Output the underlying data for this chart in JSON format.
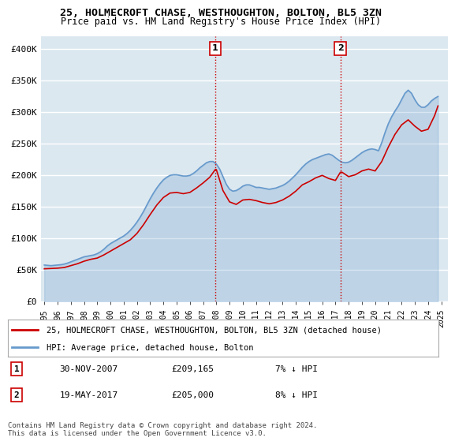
{
  "title": "25, HOLMECROFT CHASE, WESTHOUGHTON, BOLTON, BL5 3ZN",
  "subtitle": "Price paid vs. HM Land Registry's House Price Index (HPI)",
  "hpi_label": "HPI: Average price, detached house, Bolton",
  "property_label": "25, HOLMECROFT CHASE, WESTHOUGHTON, BOLTON, BL5 3ZN (detached house)",
  "hpi_color": "#6699cc",
  "property_color": "#cc0000",
  "marker_color": "#cc0000",
  "background_color": "#f0f4f8",
  "plot_bg_color": "#dce8f0",
  "grid_color": "#ffffff",
  "ylim": [
    0,
    420000
  ],
  "yticks": [
    0,
    50000,
    100000,
    150000,
    200000,
    250000,
    300000,
    350000,
    400000
  ],
  "ytick_labels": [
    "£0",
    "£50K",
    "£100K",
    "£150K",
    "£200K",
    "£250K",
    "£300K",
    "£350K",
    "£400K"
  ],
  "sale1_date": "30-NOV-2007",
  "sale1_price": 209165,
  "sale1_hpi_pct": "7% ↓ HPI",
  "sale1_label": "1",
  "sale1_year": 2007.917,
  "sale2_date": "19-MAY-2017",
  "sale2_price": 205000,
  "sale2_hpi_pct": "8% ↓ HPI",
  "sale2_label": "2",
  "sale2_year": 2017.375,
  "vline_color": "#cc0000",
  "vline_style": ":",
  "footer": "Contains HM Land Registry data © Crown copyright and database right 2024.\nThis data is licensed under the Open Government Licence v3.0.",
  "hpi_data": {
    "years": [
      1995.0,
      1995.25,
      1995.5,
      1995.75,
      1996.0,
      1996.25,
      1996.5,
      1996.75,
      1997.0,
      1997.25,
      1997.5,
      1997.75,
      1998.0,
      1998.25,
      1998.5,
      1998.75,
      1999.0,
      1999.25,
      1999.5,
      1999.75,
      2000.0,
      2000.25,
      2000.5,
      2000.75,
      2001.0,
      2001.25,
      2001.5,
      2001.75,
      2002.0,
      2002.25,
      2002.5,
      2002.75,
      2003.0,
      2003.25,
      2003.5,
      2003.75,
      2004.0,
      2004.25,
      2004.5,
      2004.75,
      2005.0,
      2005.25,
      2005.5,
      2005.75,
      2006.0,
      2006.25,
      2006.5,
      2006.75,
      2007.0,
      2007.25,
      2007.5,
      2007.75,
      2008.0,
      2008.25,
      2008.5,
      2008.75,
      2009.0,
      2009.25,
      2009.5,
      2009.75,
      2010.0,
      2010.25,
      2010.5,
      2010.75,
      2011.0,
      2011.25,
      2011.5,
      2011.75,
      2012.0,
      2012.25,
      2012.5,
      2012.75,
      2013.0,
      2013.25,
      2013.5,
      2013.75,
      2014.0,
      2014.25,
      2014.5,
      2014.75,
      2015.0,
      2015.25,
      2015.5,
      2015.75,
      2016.0,
      2016.25,
      2016.5,
      2016.75,
      2017.0,
      2017.25,
      2017.5,
      2017.75,
      2018.0,
      2018.25,
      2018.5,
      2018.75,
      2019.0,
      2019.25,
      2019.5,
      2019.75,
      2020.0,
      2020.25,
      2020.5,
      2020.75,
      2021.0,
      2021.25,
      2021.5,
      2021.75,
      2022.0,
      2022.25,
      2022.5,
      2022.75,
      2023.0,
      2023.25,
      2023.5,
      2023.75,
      2024.0,
      2024.25,
      2024.5,
      2024.75
    ],
    "values": [
      58000,
      57500,
      57000,
      57500,
      58000,
      58500,
      59500,
      61000,
      63000,
      65000,
      67000,
      69000,
      71000,
      72000,
      73000,
      74000,
      76000,
      79000,
      83000,
      88000,
      92000,
      95000,
      98000,
      101000,
      104000,
      108000,
      113000,
      119000,
      126000,
      134000,
      143000,
      153000,
      163000,
      172000,
      180000,
      187000,
      193000,
      197000,
      200000,
      201000,
      201000,
      200000,
      199000,
      199000,
      200000,
      203000,
      207000,
      212000,
      216000,
      220000,
      222000,
      222000,
      218000,
      210000,
      198000,
      186000,
      178000,
      175000,
      176000,
      179000,
      183000,
      185000,
      185000,
      183000,
      181000,
      181000,
      180000,
      179000,
      178000,
      179000,
      180000,
      182000,
      184000,
      187000,
      191000,
      196000,
      201000,
      207000,
      213000,
      218000,
      222000,
      225000,
      227000,
      229000,
      231000,
      233000,
      234000,
      232000,
      228000,
      224000,
      221000,
      220000,
      221000,
      224000,
      228000,
      232000,
      236000,
      239000,
      241000,
      242000,
      241000,
      239000,
      252000,
      268000,
      282000,
      293000,
      302000,
      310000,
      320000,
      330000,
      335000,
      330000,
      320000,
      312000,
      308000,
      308000,
      312000,
      318000,
      322000,
      325000
    ]
  },
  "property_data": {
    "years": [
      1995.0,
      1995.5,
      1996.0,
      1996.5,
      1997.0,
      1997.5,
      1998.0,
      1998.5,
      1999.0,
      1999.5,
      2000.0,
      2000.5,
      2001.0,
      2001.5,
      2002.0,
      2002.5,
      2003.0,
      2003.5,
      2004.0,
      2004.5,
      2005.0,
      2005.5,
      2006.0,
      2006.5,
      2007.0,
      2007.5,
      2007.917,
      2008.0,
      2008.5,
      2009.0,
      2009.5,
      2010.0,
      2010.5,
      2011.0,
      2011.5,
      2012.0,
      2012.5,
      2013.0,
      2013.5,
      2014.0,
      2014.5,
      2015.0,
      2015.5,
      2016.0,
      2016.5,
      2017.0,
      2017.375,
      2017.5,
      2018.0,
      2018.5,
      2019.0,
      2019.5,
      2020.0,
      2020.5,
      2021.0,
      2021.5,
      2022.0,
      2022.5,
      2023.0,
      2023.5,
      2024.0,
      2024.5,
      2024.75
    ],
    "values": [
      52000,
      52500,
      53000,
      54000,
      57000,
      60000,
      64000,
      67000,
      69000,
      74000,
      80000,
      86000,
      92000,
      98000,
      108000,
      122000,
      138000,
      153000,
      165000,
      172000,
      173000,
      171000,
      173000,
      180000,
      188000,
      197000,
      209165,
      209165,
      176000,
      158000,
      154000,
      161000,
      162000,
      160000,
      157000,
      155000,
      157000,
      161000,
      167000,
      175000,
      185000,
      190000,
      196000,
      200000,
      195000,
      192000,
      205000,
      205000,
      198000,
      201000,
      207000,
      210000,
      207000,
      222000,
      245000,
      265000,
      280000,
      288000,
      278000,
      270000,
      273000,
      295000,
      310000
    ]
  }
}
